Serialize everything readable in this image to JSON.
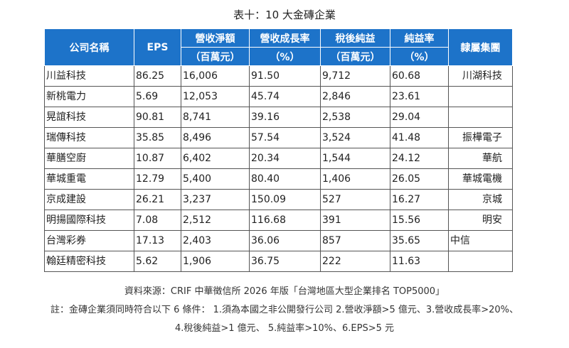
{
  "title": "表十：10 大金磚企業",
  "headers": {
    "company": "公司名稱",
    "eps": "EPS",
    "revenue": "營收淨額",
    "revenue_unit": "（百萬元）",
    "growth": "營收成長率",
    "growth_unit": "（%）",
    "net_income": "稅後純益",
    "net_income_unit": "（百萬元）",
    "margin": "純益率",
    "margin_unit": "（%）",
    "group": "隸屬集團"
  },
  "rows": [
    {
      "company": "川益科技",
      "eps": "86.25",
      "revenue": "16,006",
      "growth": "91.50",
      "net_income": "9,712",
      "margin": "60.68",
      "group": "川湖科技"
    },
    {
      "company": "新桃電力",
      "eps": "5.69",
      "revenue": "12,053",
      "growth": "45.74",
      "net_income": "2,846",
      "margin": "23.61",
      "group": ""
    },
    {
      "company": "晃誼科技",
      "eps": "90.81",
      "revenue": "8,741",
      "growth": "39.16",
      "net_income": "2,538",
      "margin": "29.04",
      "group": ""
    },
    {
      "company": "瑞傳科技",
      "eps": "35.85",
      "revenue": "8,496",
      "growth": "57.54",
      "net_income": "3,524",
      "margin": "41.48",
      "group": "振樺電子"
    },
    {
      "company": "華膳空廚",
      "eps": "10.87",
      "revenue": "6,402",
      "growth": "20.34",
      "net_income": "1,544",
      "margin": "24.12",
      "group": "華航"
    },
    {
      "company": "華城重電",
      "eps": "12.79",
      "revenue": "5,400",
      "growth": "80.40",
      "net_income": "1,406",
      "margin": "26.05",
      "group": "華城電機"
    },
    {
      "company": "京成建設",
      "eps": "26.21",
      "revenue": "3,237",
      "growth": "150.09",
      "net_income": "527",
      "margin": "16.27",
      "group": "京城"
    },
    {
      "company": "明揚國際科技",
      "eps": "7.08",
      "revenue": "2,512",
      "growth": "116.68",
      "net_income": "391",
      "margin": "15.56",
      "group": "明安"
    },
    {
      "company": "台灣彩券",
      "eps": "17.13",
      "revenue": "2,403",
      "growth": "36.06",
      "net_income": "857",
      "margin": "35.65",
      "group": "中信"
    },
    {
      "company": "翰廷精密科技",
      "eps": "5.62",
      "revenue": "1,906",
      "growth": "36.75",
      "net_income": "222",
      "margin": "11.63",
      "group": ""
    }
  ],
  "source": "資料來源：CRIF 中華徵信所 2026 年版「台灣地區大型企業排名 TOP5000」",
  "note_line1": "註：金磚企業須同時符合以下 6 條件： 1.須為本國之非公開發行公司 2.營收淨額>5 億元、3.營收成長率>20%、",
  "note_line2": "4.稅後純益>1 億元、 5.純益率>10%、6.EPS>5 元"
}
